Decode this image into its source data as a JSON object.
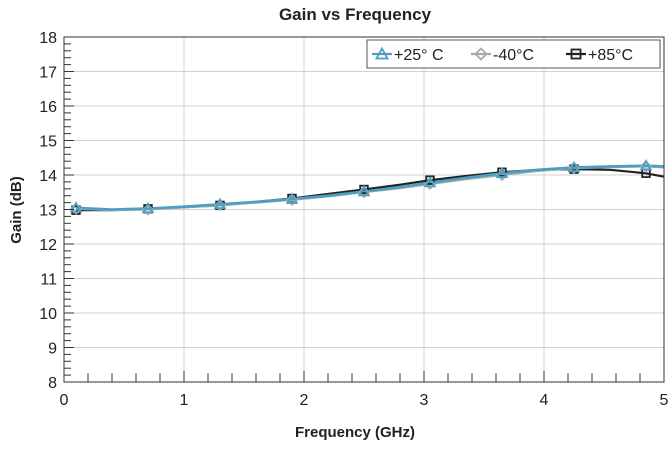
{
  "chart_data": {
    "type": "line",
    "title": "Gain vs Frequency",
    "xlabel": "Frequency (GHz)",
    "ylabel": "Gain (dB)",
    "xlim": [
      0,
      5
    ],
    "ylim": [
      8,
      18
    ],
    "x_ticks": [
      0,
      1,
      2,
      3,
      4,
      5
    ],
    "y_ticks": [
      8,
      9,
      10,
      11,
      12,
      13,
      14,
      15,
      16,
      17,
      18
    ],
    "grid": true,
    "legend_position": "top-right",
    "series": [
      {
        "name": "+25° C",
        "marker": "triangle",
        "color": "#4a9fc4",
        "x": [
          0.1,
          0.4,
          0.7,
          1.0,
          1.3,
          1.6,
          1.9,
          2.2,
          2.5,
          2.8,
          3.05,
          3.35,
          3.65,
          3.95,
          4.25,
          4.55,
          4.85,
          5.0
        ],
        "y": [
          13.05,
          13.0,
          13.03,
          13.08,
          13.15,
          13.22,
          13.3,
          13.4,
          13.52,
          13.65,
          13.78,
          13.92,
          14.05,
          14.15,
          14.22,
          14.25,
          14.27,
          14.25
        ]
      },
      {
        "name": "-40°C",
        "marker": "diamond",
        "color": "#a9a9a9",
        "x": [
          0.1,
          0.4,
          0.7,
          1.0,
          1.3,
          1.6,
          1.9,
          2.2,
          2.5,
          2.8,
          3.05,
          3.35,
          3.65,
          3.95,
          4.25,
          4.55,
          4.85,
          5.0
        ],
        "y": [
          13.02,
          12.98,
          13.0,
          13.06,
          13.12,
          13.2,
          13.28,
          13.38,
          13.5,
          13.62,
          13.74,
          13.88,
          14.0,
          14.12,
          14.2,
          14.23,
          14.25,
          14.22
        ]
      },
      {
        "name": "+85°C",
        "marker": "square",
        "color": "#222222",
        "x": [
          0.1,
          0.4,
          0.7,
          1.0,
          1.3,
          1.6,
          1.9,
          2.2,
          2.5,
          2.8,
          3.05,
          3.35,
          3.65,
          3.95,
          4.25,
          4.55,
          4.85,
          5.0
        ],
        "y": [
          12.98,
          12.98,
          13.02,
          13.07,
          13.12,
          13.22,
          13.32,
          13.45,
          13.58,
          13.72,
          13.85,
          13.97,
          14.08,
          14.15,
          14.17,
          14.15,
          14.05,
          13.95
        ]
      }
    ],
    "marker_x": [
      0.1,
      0.7,
      1.3,
      1.9,
      2.5,
      3.05,
      3.65,
      4.25,
      4.85
    ]
  }
}
